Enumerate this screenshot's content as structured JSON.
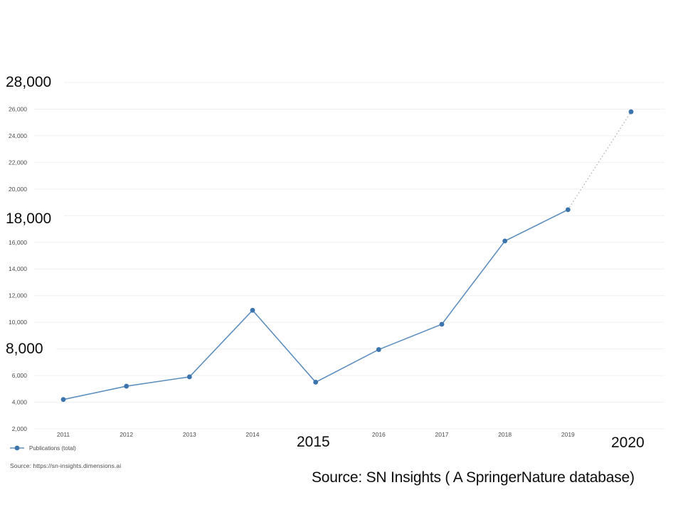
{
  "chart_data": {
    "type": "line",
    "title": "",
    "xlabel": "",
    "ylabel": "",
    "x": [
      "2011",
      "2012",
      "2013",
      "2014",
      "2015",
      "2016",
      "2017",
      "2018",
      "2019",
      "2020"
    ],
    "series": [
      {
        "name": "Publications (total)",
        "values": [
          4200,
          5200,
          5900,
          10900,
          5500,
          7950,
          9850,
          16100,
          18450,
          25800
        ]
      }
    ],
    "ylim": [
      2000,
      28000
    ],
    "ytick_step": 2000,
    "grid": true,
    "legend_position": "bottom-left",
    "projection": {
      "from_x": "2019",
      "to_x": "2020",
      "style": "dotted"
    },
    "y_ticks": [
      {
        "value": 2000,
        "label": "2,000",
        "size": "small"
      },
      {
        "value": 4000,
        "label": "4,000",
        "size": "small"
      },
      {
        "value": 6000,
        "label": "6,000",
        "size": "small"
      },
      {
        "value": 8000,
        "label": "8,000",
        "size": "large"
      },
      {
        "value": 10000,
        "label": "10,000",
        "size": "small"
      },
      {
        "value": 12000,
        "label": "12,000",
        "size": "small"
      },
      {
        "value": 14000,
        "label": "14,000",
        "size": "small"
      },
      {
        "value": 16000,
        "label": "16,000",
        "size": "small"
      },
      {
        "value": 18000,
        "label": "18,000",
        "size": "large"
      },
      {
        "value": 20000,
        "label": "20,000",
        "size": "small"
      },
      {
        "value": 22000,
        "label": "22,000",
        "size": "small"
      },
      {
        "value": 24000,
        "label": "24,000",
        "size": "small"
      },
      {
        "value": 26000,
        "label": "26,000",
        "size": "small"
      },
      {
        "value": 28000,
        "label": "28,000",
        "size": "large"
      }
    ],
    "x_ticks": [
      {
        "label": "2011",
        "size": "small"
      },
      {
        "label": "2012",
        "size": "small"
      },
      {
        "label": "2013",
        "size": "small"
      },
      {
        "label": "2014",
        "size": "small"
      },
      {
        "label": "2015",
        "size": "large"
      },
      {
        "label": "2016",
        "size": "small"
      },
      {
        "label": "2017",
        "size": "small"
      },
      {
        "label": "2018",
        "size": "small"
      },
      {
        "label": "2019",
        "size": "small"
      },
      {
        "label": "2020",
        "size": "large"
      }
    ],
    "colors": {
      "line": "#5f8fbf",
      "point": "#3c74ae",
      "projection": "#b8b8b8",
      "gridline": "#f0f0f0",
      "tick_text": "#4d4d4d",
      "callout_text": "#0c0c0c"
    }
  },
  "overlays": {
    "y_label_28000": "28,000",
    "y_label_18000": "18,000",
    "y_label_8000": "8,000",
    "x_label_2015": "2015",
    "x_label_2020": "2020",
    "caption": "Source: SN Insights ( A SpringerNature database)"
  },
  "legend": {
    "label": "Publications (total)",
    "marker_icon": "line-dot-marker"
  },
  "source_note": "Source: https://sn-insights.dimensions.ai"
}
